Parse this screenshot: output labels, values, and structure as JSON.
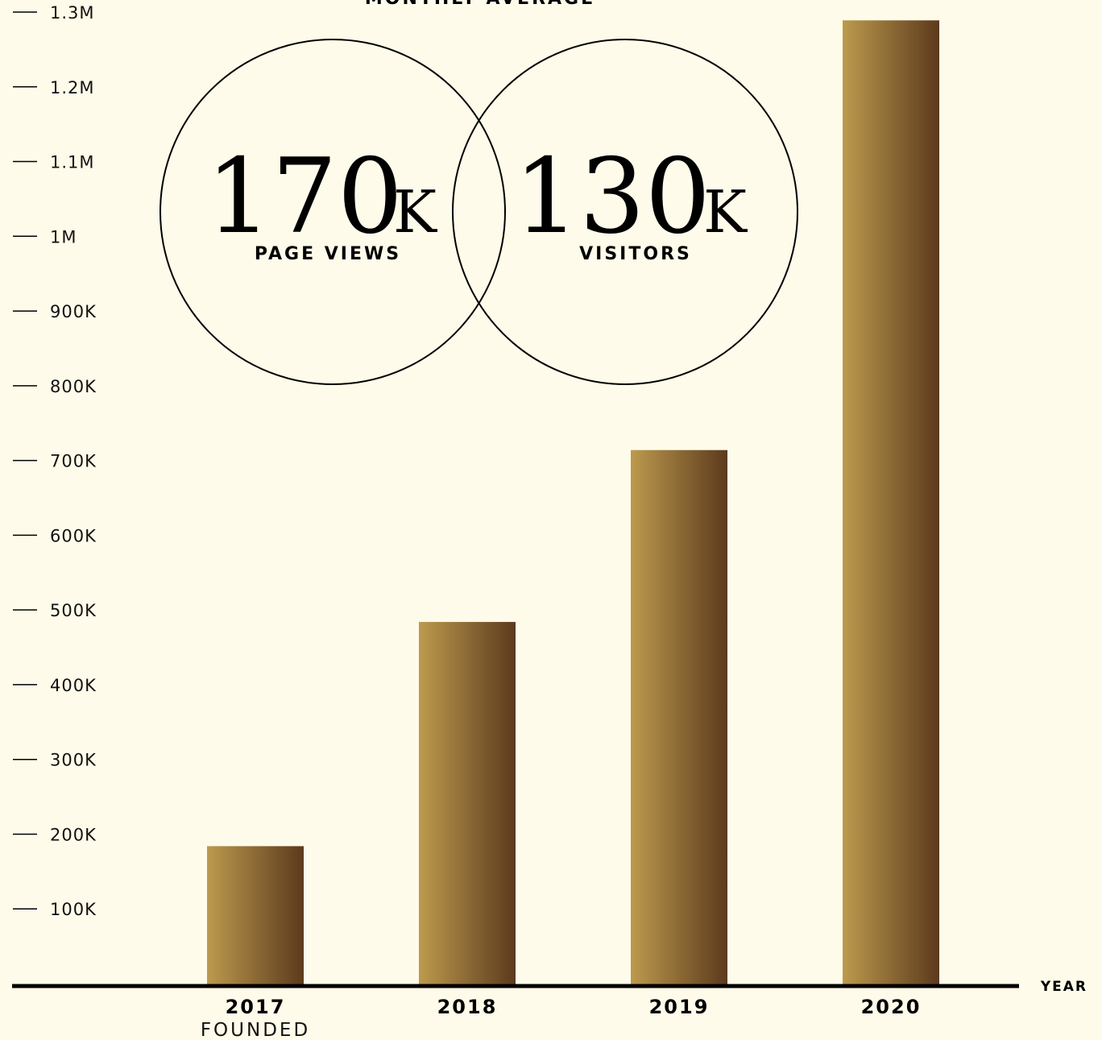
{
  "header": {
    "title": "MONTHLY AVERAGE"
  },
  "stats": [
    {
      "value": "170",
      "unit": "K",
      "label": "PAGE VIEWS"
    },
    {
      "value": "130",
      "unit": "K",
      "label": "VISITORS"
    }
  ],
  "colors": {
    "background": "#fffbea",
    "bar_light": "#bc9a4e",
    "bar_dark": "#5c3a1c",
    "axis": "#000000"
  },
  "chart_data": {
    "type": "bar",
    "categories": [
      "2017",
      "2018",
      "2019",
      "2020"
    ],
    "values": [
      185000,
      485000,
      715000,
      1290000
    ],
    "category_notes": [
      "FOUNDED",
      "",
      "",
      ""
    ],
    "xlabel": "YEAR",
    "ylabel": "",
    "ylim": [
      0,
      1300000
    ],
    "yticks": [
      100000,
      200000,
      300000,
      400000,
      500000,
      600000,
      700000,
      800000,
      900000,
      1000000,
      1100000,
      1200000,
      1300000
    ],
    "ytick_labels": [
      "100K",
      "200K",
      "300K",
      "400K",
      "500K",
      "600K",
      "700K",
      "800K",
      "900K",
      "1M",
      "1.1M",
      "1.2M",
      "1.3M"
    ],
    "grid": false,
    "legend": "none"
  }
}
